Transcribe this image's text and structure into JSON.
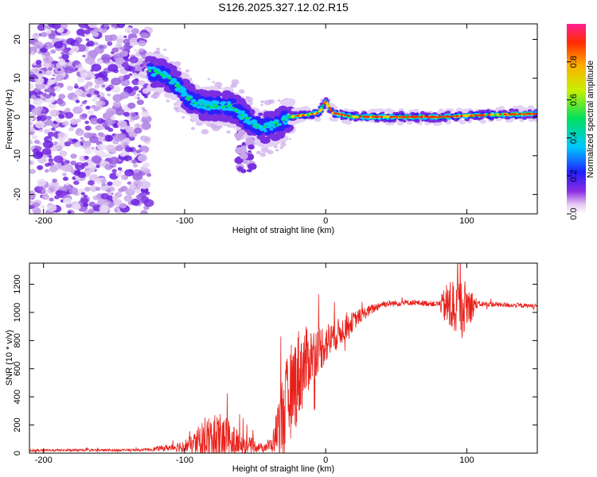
{
  "title": "S126.2025.327.12.02.R15",
  "chart_data": [
    {
      "type": "heatmap",
      "name": "spectrogram",
      "xlabel": "Height of straight line (km)",
      "ylabel": "Frequency (Hz)",
      "xlim": [
        -210,
        150
      ],
      "ylim": [
        -25,
        24
      ],
      "xticks": [
        -200,
        -100,
        0,
        100
      ],
      "yticks": [
        -20,
        -10,
        0,
        10,
        20
      ],
      "colorbar": {
        "label": "Normalized spectral amplitude",
        "range": [
          0.0,
          1.0
        ],
        "ticks": [
          0.0,
          0.2,
          0.4,
          0.6,
          0.8
        ]
      },
      "ridge": [
        {
          "x": -125,
          "f": 12
        },
        {
          "x": -115,
          "f": 11
        },
        {
          "x": -105,
          "f": 8
        },
        {
          "x": -95,
          "f": 4
        },
        {
          "x": -85,
          "f": 3
        },
        {
          "x": -75,
          "f": 3
        },
        {
          "x": -65,
          "f": 2.5
        },
        {
          "x": -55,
          "f": -1
        },
        {
          "x": -45,
          "f": -3
        },
        {
          "x": -35,
          "f": -2
        },
        {
          "x": -25,
          "f": 0
        },
        {
          "x": -15,
          "f": 0.5
        },
        {
          "x": -5,
          "f": 1
        },
        {
          "x": 0,
          "f": 4
        },
        {
          "x": 5,
          "f": 1
        },
        {
          "x": 20,
          "f": 0
        },
        {
          "x": 50,
          "f": 0
        },
        {
          "x": 80,
          "f": 0
        },
        {
          "x": 100,
          "f": 0.3
        },
        {
          "x": 120,
          "f": 0.6
        },
        {
          "x": 150,
          "f": 0.8
        }
      ]
    },
    {
      "type": "line",
      "name": "snr",
      "xlabel": "Height of straight line (km)",
      "ylabel": "SNR (10 * v/v)",
      "xlim": [
        -210,
        150
      ],
      "ylim": [
        0,
        1350
      ],
      "xticks": [
        -200,
        -100,
        0,
        100
      ],
      "yticks": [
        0,
        200,
        400,
        600,
        800,
        1000,
        1200
      ],
      "color": "#e8201a",
      "envelope": [
        {
          "x": -210,
          "mean": 20,
          "amp": 8
        },
        {
          "x": -130,
          "mean": 22,
          "amp": 8
        },
        {
          "x": -110,
          "mean": 40,
          "amp": 25
        },
        {
          "x": -95,
          "mean": 60,
          "amp": 60
        },
        {
          "x": -85,
          "mean": 110,
          "amp": 160
        },
        {
          "x": -72,
          "mean": 110,
          "amp": 170
        },
        {
          "x": -62,
          "mean": 70,
          "amp": 90
        },
        {
          "x": -45,
          "mean": 40,
          "amp": 25
        },
        {
          "x": -38,
          "mean": 60,
          "amp": 60
        },
        {
          "x": -30,
          "mean": 300,
          "amp": 300
        },
        {
          "x": -20,
          "mean": 550,
          "amp": 350
        },
        {
          "x": -10,
          "mean": 700,
          "amp": 200
        },
        {
          "x": 0,
          "mean": 780,
          "amp": 150
        },
        {
          "x": 10,
          "mean": 860,
          "amp": 100
        },
        {
          "x": 25,
          "mean": 980,
          "amp": 50
        },
        {
          "x": 40,
          "mean": 1060,
          "amp": 25
        },
        {
          "x": 60,
          "mean": 1070,
          "amp": 20
        },
        {
          "x": 80,
          "mean": 1060,
          "amp": 20
        },
        {
          "x": 88,
          "mean": 1040,
          "amp": 220
        },
        {
          "x": 100,
          "mean": 1050,
          "amp": 180
        },
        {
          "x": 108,
          "mean": 1060,
          "amp": 20
        },
        {
          "x": 150,
          "mean": 1045,
          "amp": 15
        }
      ]
    }
  ]
}
